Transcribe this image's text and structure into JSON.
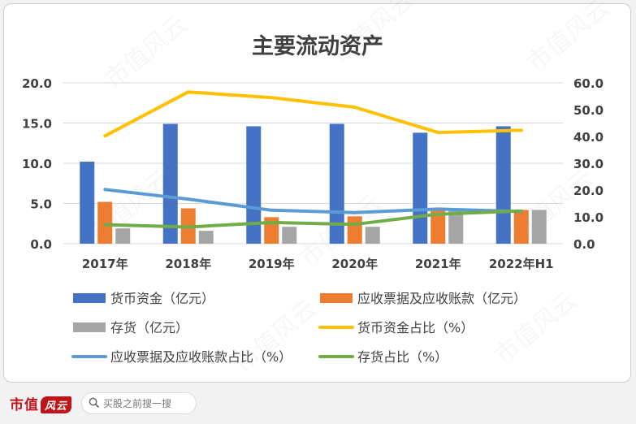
{
  "chart_data": {
    "type": "bar",
    "title": "主要流动资产",
    "categories": [
      "2017年",
      "2018年",
      "2019年",
      "2020年",
      "2021年",
      "2022年H1"
    ],
    "y_left": {
      "ticks": [
        "0.0",
        "5.0",
        "10.0",
        "15.0",
        "20.0"
      ],
      "ylim": [
        0,
        20
      ]
    },
    "y_right": {
      "ticks": [
        "0.0",
        "10.0",
        "20.0",
        "30.0",
        "40.0",
        "50.0",
        "60.0"
      ],
      "ylim": [
        0,
        60
      ]
    },
    "bar_series": [
      {
        "name": "货币资金（亿元）",
        "color": "#4472c4",
        "values": [
          10.2,
          14.9,
          14.6,
          14.9,
          13.8,
          14.6
        ]
      },
      {
        "name": "应收票据及应收账款（亿元）",
        "color": "#ed7d31",
        "values": [
          5.2,
          4.4,
          3.3,
          3.4,
          4.2,
          4.2
        ]
      },
      {
        "name": "存货（亿元）",
        "color": "#a5a5a5",
        "values": [
          1.9,
          1.6,
          2.1,
          2.1,
          4.2,
          4.2
        ]
      }
    ],
    "line_series": [
      {
        "name": "货币资金占比（%）",
        "color": "#ffc000",
        "values": [
          40.2,
          56.6,
          54.5,
          50.9,
          41.5,
          42.3
        ]
      },
      {
        "name": "应收票据及应收账款占比（%）",
        "color": "#5b9bd5",
        "values": [
          20.2,
          16.6,
          12.5,
          11.6,
          12.9,
          12.0
        ]
      },
      {
        "name": "存货占比（%）",
        "color": "#70ad47",
        "values": [
          7.1,
          6.2,
          7.9,
          7.2,
          11.0,
          12.2
        ]
      }
    ],
    "grid": true,
    "legend_position": "bottom"
  },
  "footer": {
    "brand": "市值",
    "brand_mark": "风云",
    "search_placeholder": "买股之前搜一搜"
  },
  "watermark": "市值风云"
}
